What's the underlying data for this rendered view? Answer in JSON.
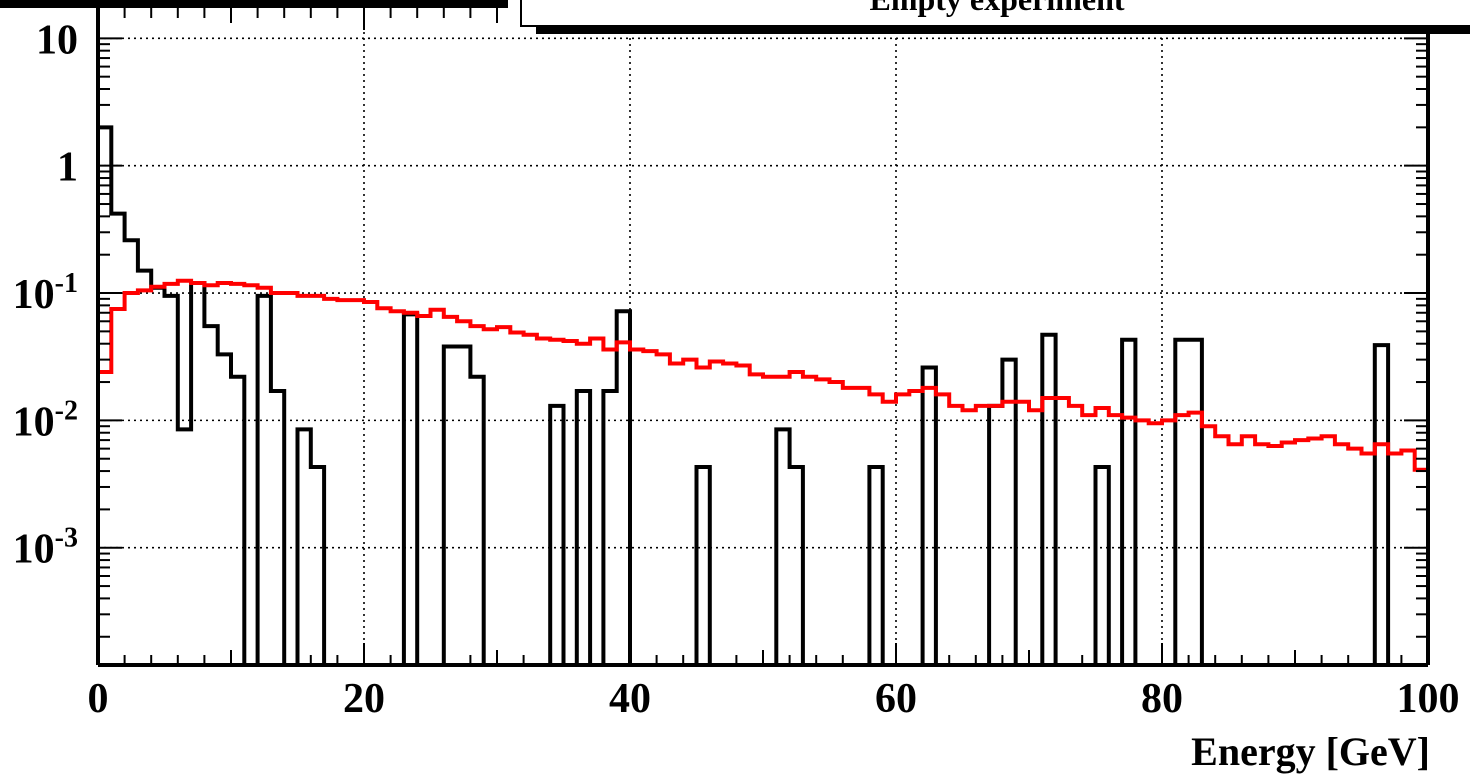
{
  "chart_data": {
    "type": "histogram",
    "title": "Empty experiment",
    "xlabel": "Energy [GeV]",
    "ylabel": "",
    "xlim": [
      0,
      100
    ],
    "ylim": [
      0.00012,
      20
    ],
    "yscale": "log",
    "grid": true,
    "bin_width": 1,
    "x_tick_labels": [
      "0",
      "20",
      "40",
      "60",
      "80",
      "100"
    ],
    "x_tick_values": [
      0,
      20,
      40,
      60,
      80,
      100
    ],
    "y_tick_labels": [
      {
        "value": 10,
        "base": "10",
        "exp": ""
      },
      {
        "value": 1,
        "base": "1",
        "exp": ""
      },
      {
        "value": 0.1,
        "base": "10",
        "exp": "-1"
      },
      {
        "value": 0.01,
        "base": "10",
        "exp": "-2"
      },
      {
        "value": 0.001,
        "base": "10",
        "exp": "-3"
      }
    ],
    "series": [
      {
        "color": "#000000",
        "values": [
          2,
          0.42,
          0.26,
          0.15,
          0.11,
          0.095,
          0.0085,
          0.12,
          0.055,
          0.033,
          0.022,
          0,
          0.095,
          0.017,
          0,
          0.0085,
          0.0043,
          0,
          0,
          0,
          0,
          0,
          0,
          0.068,
          0,
          0,
          0.038,
          0.038,
          0.022,
          0,
          0,
          0,
          0,
          0,
          0.013,
          0,
          0.017,
          0,
          0.017,
          0.072,
          0,
          0,
          0,
          0,
          0,
          0.0043,
          0,
          0,
          0,
          0,
          0,
          0.0085,
          0.0043,
          0,
          0,
          0,
          0,
          0,
          0.0043,
          0,
          0,
          0,
          0.026,
          0,
          0,
          0,
          0,
          0.013,
          0.03,
          0,
          0,
          0.047,
          0,
          0,
          0,
          0.0043,
          0,
          0.043,
          0,
          0,
          0,
          0.043,
          0.043,
          0,
          0,
          0,
          0,
          0,
          0,
          0,
          0,
          0,
          0,
          0,
          0,
          0,
          0.039,
          0,
          0,
          0
        ]
      },
      {
        "color": "#ff0000",
        "values": [
          0.024,
          0.075,
          0.1,
          0.105,
          0.112,
          0.118,
          0.125,
          0.12,
          0.115,
          0.12,
          0.118,
          0.115,
          0.11,
          0.1,
          0.1,
          0.095,
          0.095,
          0.09,
          0.088,
          0.088,
          0.085,
          0.076,
          0.072,
          0.07,
          0.066,
          0.074,
          0.065,
          0.06,
          0.055,
          0.052,
          0.054,
          0.049,
          0.047,
          0.044,
          0.043,
          0.042,
          0.04,
          0.044,
          0.036,
          0.041,
          0.036,
          0.035,
          0.033,
          0.028,
          0.03,
          0.026,
          0.029,
          0.028,
          0.027,
          0.023,
          0.022,
          0.022,
          0.024,
          0.022,
          0.021,
          0.02,
          0.018,
          0.018,
          0.016,
          0.014,
          0.016,
          0.017,
          0.018,
          0.016,
          0.013,
          0.012,
          0.013,
          0.013,
          0.014,
          0.014,
          0.012,
          0.015,
          0.015,
          0.013,
          0.011,
          0.0125,
          0.011,
          0.0105,
          0.01,
          0.0095,
          0.01,
          0.011,
          0.0115,
          0.009,
          0.0075,
          0.0065,
          0.0075,
          0.0065,
          0.0063,
          0.0067,
          0.007,
          0.0072,
          0.0075,
          0.0065,
          0.006,
          0.0055,
          0.0065,
          0.0055,
          0.0058,
          0.0041
        ]
      }
    ]
  }
}
